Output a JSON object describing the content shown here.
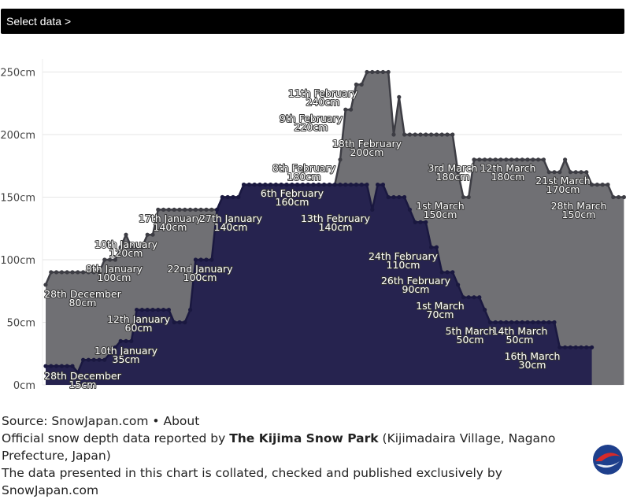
{
  "topbar": {
    "label": "Select data >"
  },
  "footer": {
    "source": "Source: SnowJapan.com • About",
    "line2_prefix": "Official snow depth data reported by ",
    "resort": "The Kijima Snow Park",
    "line2_suffix": " (Kijimadaira Village, Nagano Prefecture, Japan)",
    "line3": "The data presented in this chart is collated, checked and published exclusively by SnowJapan.com"
  },
  "colors": {
    "grey_area": "#707074",
    "grey_line": "#3d3d44",
    "navy_area": "#26234f",
    "navy_line": "#1a1840"
  },
  "chart_data": {
    "type": "area",
    "ylim": [
      0,
      250
    ],
    "yticks": [
      "0cm",
      "50cm",
      "100cm",
      "150cm",
      "200cm",
      "250cm"
    ],
    "series": [
      {
        "values": [
          80,
          90,
          90,
          90,
          90,
          90,
          90,
          90,
          90,
          90,
          90,
          100,
          100,
          100,
          110,
          120,
          110,
          110,
          110,
          120,
          120,
          140,
          140,
          140,
          140,
          140,
          140,
          140,
          140,
          140,
          140,
          140,
          140,
          150,
          150,
          150,
          150,
          160,
          160,
          160,
          160,
          160,
          160,
          160,
          160,
          160,
          160,
          160,
          160,
          160,
          160,
          160,
          160,
          160,
          160,
          180,
          220,
          220,
          240,
          240,
          250,
          250,
          250,
          250,
          250,
          200,
          230,
          200,
          200,
          200,
          200,
          200,
          200,
          200,
          200,
          200,
          200,
          170,
          150,
          150,
          180,
          180,
          180,
          180,
          180,
          180,
          180,
          180,
          180,
          180,
          180,
          180,
          180,
          180,
          170,
          170,
          170,
          180,
          170,
          170,
          170,
          170,
          160,
          160,
          160,
          160,
          150,
          150,
          150
        ]
      },
      {
        "values": [
          15,
          15,
          15,
          15,
          15,
          15,
          10,
          20,
          20,
          20,
          20,
          20,
          25,
          30,
          35,
          35,
          35,
          60,
          60,
          60,
          60,
          60,
          60,
          60,
          50,
          50,
          50,
          60,
          100,
          100,
          100,
          100,
          140,
          150,
          150,
          150,
          150,
          160,
          160,
          160,
          160,
          160,
          160,
          160,
          160,
          160,
          160,
          160,
          160,
          160,
          160,
          160,
          160,
          160,
          160,
          160,
          160,
          160,
          160,
          160,
          160,
          140,
          160,
          160,
          150,
          150,
          150,
          150,
          140,
          130,
          130,
          130,
          110,
          110,
          90,
          90,
          90,
          80,
          70,
          70,
          70,
          70,
          60,
          50,
          50,
          50,
          50,
          50,
          50,
          50,
          50,
          50,
          50,
          50,
          50,
          50,
          30,
          30,
          30,
          30,
          30,
          30,
          30
        ]
      }
    ],
    "annotations": [
      {
        "text": "28th December",
        "value": "80cm"
      },
      {
        "text": "28th December",
        "value": "15cm"
      },
      {
        "text": "8th January",
        "value": "100cm"
      },
      {
        "text": "10th January",
        "value": "120cm"
      },
      {
        "text": "10th January",
        "value": "35cm"
      },
      {
        "text": "12th January",
        "value": "60cm"
      },
      {
        "text": "17th January",
        "value": "140cm"
      },
      {
        "text": "22nd January",
        "value": "100cm"
      },
      {
        "text": "27th January",
        "value": "140cm"
      },
      {
        "text": "6th February",
        "value": "160cm"
      },
      {
        "text": "8th February",
        "value": "180cm"
      },
      {
        "text": "9th February",
        "value": "220cm"
      },
      {
        "text": "11th February",
        "value": "240cm"
      },
      {
        "text": "13th February",
        "value": "140cm"
      },
      {
        "text": "18th February",
        "value": "200cm"
      },
      {
        "text": "24th February",
        "value": "110cm"
      },
      {
        "text": "26th February",
        "value": "90cm"
      },
      {
        "text": "1st March",
        "value": "150cm"
      },
      {
        "text": "1st March",
        "value": "70cm"
      },
      {
        "text": "3rd March",
        "value": "180cm"
      },
      {
        "text": "5th March",
        "value": "50cm"
      },
      {
        "text": "12th March",
        "value": "180cm"
      },
      {
        "text": "14th March",
        "value": "50cm"
      },
      {
        "text": "16th March",
        "value": "30cm"
      },
      {
        "text": "21st March",
        "value": "170cm"
      },
      {
        "text": "28th March",
        "value": "150cm"
      }
    ]
  }
}
